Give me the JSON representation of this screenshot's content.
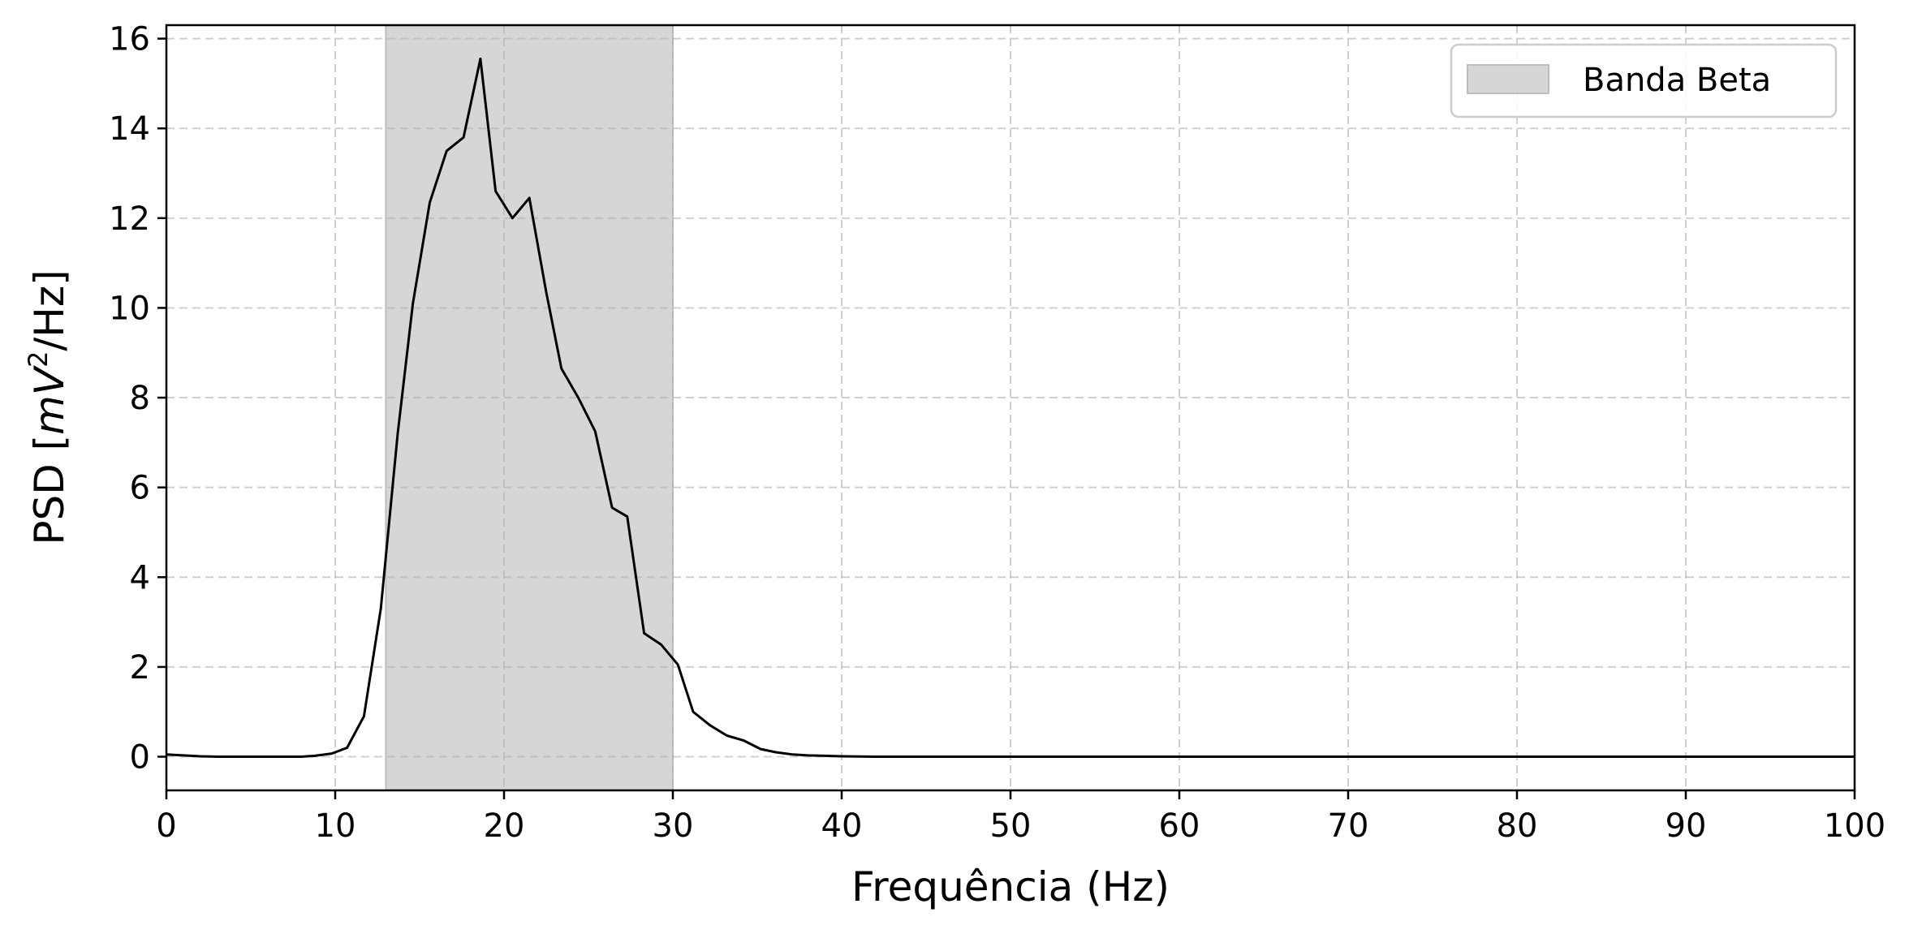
{
  "chart_data": {
    "type": "line",
    "xlabel": "Frequência (Hz)",
    "ylabel": {
      "prefix": "PSD [",
      "var": "mV",
      "sup": "2",
      "suffix": "/Hz]"
    },
    "xlim": [
      0,
      100
    ],
    "ylim": [
      -0.75,
      16.3
    ],
    "xticks": [
      0,
      10,
      20,
      30,
      40,
      50,
      60,
      70,
      80,
      90,
      100
    ],
    "yticks": [
      0,
      2,
      4,
      6,
      8,
      10,
      12,
      14,
      16
    ],
    "grid": true,
    "legend": {
      "placement": "top-right",
      "entries": [
        "Banda Beta"
      ]
    },
    "band": {
      "label": "Banda Beta",
      "x0": 13,
      "x1": 30,
      "color": "#d6d6d6"
    },
    "series": [
      {
        "color": "#000000",
        "x": [
          0,
          1,
          2,
          3,
          4,
          5,
          6,
          7,
          8,
          8.8,
          9.8,
          10.7,
          11.7,
          12.7,
          13.7,
          14.6,
          15.6,
          16.6,
          17.6,
          18.6,
          19.5,
          20.5,
          21.5,
          22.5,
          23.4,
          24.4,
          25.4,
          26.4,
          27.3,
          28.3,
          29.3,
          30.3,
          31.2,
          32.2,
          33.2,
          34.2,
          35.2,
          36.1,
          37.1,
          38,
          39,
          40,
          42,
          45,
          50,
          60,
          70,
          80,
          90,
          100
        ],
        "y": [
          0.05,
          0.03,
          0.01,
          0.0,
          0.0,
          0.0,
          0.0,
          0.0,
          0.0,
          0.02,
          0.07,
          0.2,
          0.9,
          3.3,
          7.2,
          10.1,
          12.35,
          13.5,
          13.8,
          15.55,
          12.6,
          12.0,
          12.45,
          10.35,
          8.65,
          8.0,
          7.25,
          5.55,
          5.35,
          2.75,
          2.5,
          2.05,
          1.0,
          0.7,
          0.47,
          0.36,
          0.17,
          0.1,
          0.05,
          0.03,
          0.02,
          0.01,
          0.0,
          0.0,
          0.0,
          0.0,
          0.0,
          0.0,
          0.0,
          0.0
        ]
      }
    ]
  }
}
